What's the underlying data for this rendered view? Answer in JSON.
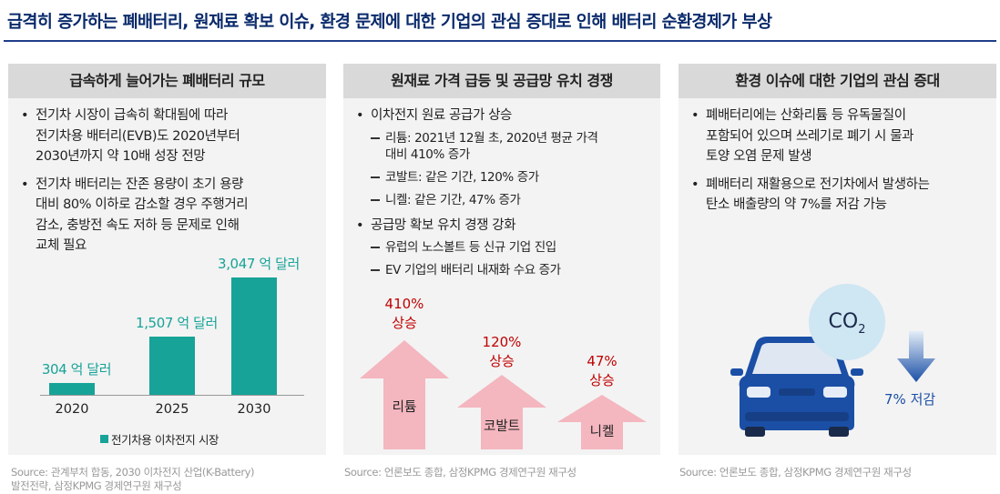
{
  "title": "급격히 증가하는 폐배터리, 원재료 확보 이슈, 환경 문제에 대한 기업의 관심 증대로 인해 배터리 순환경제가 부상",
  "panel1": {
    "heading": "급속하게 늘어가는 폐배터리 규모",
    "bullets": [
      {
        "lines": [
          "전기차 시장이 급속히 확대됨에 따라",
          "전기차용 배터리(EVB)도 2020년부터",
          "2030년까지 약 10배 성장 전망"
        ]
      },
      {
        "lines": [
          "전기차 배터리는 잔존 용량이 초기 용량",
          "대비 80% 이하로 감소할 경우 주행거리",
          "감소, 충방전 속도 저하 등 문제로 인해",
          "교체 필요"
        ]
      }
    ],
    "source_lines": [
      "Source: 관계부처 합동, 2030 이차전지 산업(K-Battery)",
      "발전전략, 삼정KPMG 경제연구원 재구성"
    ]
  },
  "chart_data": {
    "type": "bar",
    "categories": [
      "2020",
      "2025",
      "2030"
    ],
    "values": [
      304,
      1507,
      3047
    ],
    "value_labels": [
      "304 억 달러",
      "1,507 억 달러",
      "3,047 억 달러"
    ],
    "ylim": [
      0,
      3200
    ],
    "legend": "전기차용 이차전지 시장",
    "color": "#17a398"
  },
  "panel2": {
    "heading": "원재료 가격 급등 및 공급망 유치 경쟁",
    "bullet1": "이차전지 원료 공급가 상승",
    "sub1": [
      [
        "리튬: 2021년 12월 초, 2020년 평균 가격",
        "대비 410% 증가"
      ],
      [
        "코발트: 같은 기간, 120% 증가"
      ],
      [
        "니켈: 같은 기간, 47% 증가"
      ]
    ],
    "bullet2": "공급망 확보 유치 경쟁 강화",
    "sub2": [
      [
        "유럽의 노스볼트 등 신규 기업 진입"
      ],
      [
        "EV 기업의 배터리 내재화 수요 증가"
      ]
    ],
    "arrows": [
      {
        "name": "리튬",
        "pct": "410%",
        "word": "상승",
        "value": 410
      },
      {
        "name": "코발트",
        "pct": "120%",
        "word": "상승",
        "value": 120
      },
      {
        "name": "니켈",
        "pct": "47%",
        "word": "상승",
        "value": 47
      }
    ],
    "arrow_color": "#f4b6bf",
    "source": "Source: 언론보도 종합, 삼정KPMG 경제연구원 재구성"
  },
  "panel3": {
    "heading": "환경 이슈에 대한 기업의 관심 증대",
    "bullets": [
      {
        "lines": [
          "폐배터리에는 산화리튬 등 유독물질이",
          "포함되어 있으며 쓰레기로 폐기 시 물과",
          "토양 오염 문제 발생"
        ]
      },
      {
        "lines": [
          "폐배터리 재활용으로 전기차에서 발생하는",
          "탄소 배출량의 약 7%를 저감 가능"
        ]
      }
    ],
    "co2_main": "CO",
    "co2_sub": "2",
    "reduction": "7% 저감",
    "car_color": "#1b4fa6",
    "bubble_color": "#cfe6f3",
    "source": "Source: 언론보도 종합, 삼정KPMG 경제연구원 재구성"
  }
}
